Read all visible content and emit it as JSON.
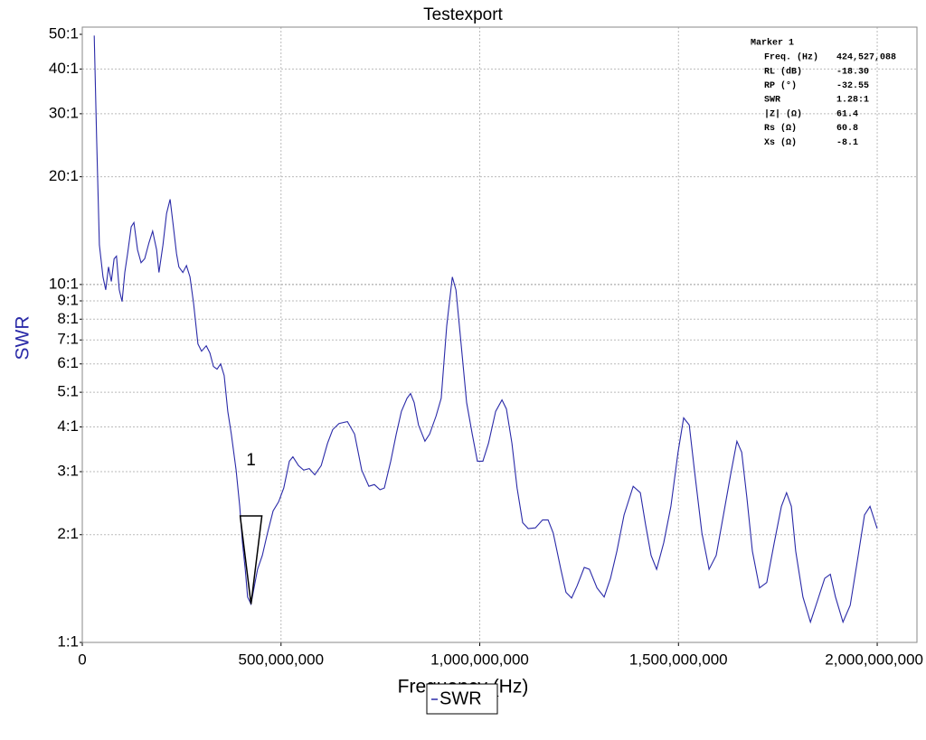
{
  "chart_data": {
    "type": "line",
    "title": "Testexport",
    "x_label": "Frequency (Hz)",
    "y_label": "SWR",
    "ylog": true,
    "grid": true,
    "legend": "bottom",
    "xlim": [
      0,
      2100000000
    ],
    "ylim": [
      1,
      50
    ],
    "xticks": [
      0,
      {
        "value": 500000000,
        "label": "500,000,000"
      },
      {
        "value": 1000000000,
        "label": "1,000,000,000"
      },
      {
        "value": 1500000000,
        "label": "1,500,000,000"
      },
      {
        "value": 2000000000,
        "label": "2,000,000,000"
      }
    ],
    "yticks": [
      {
        "value": 1,
        "label": "1:1"
      },
      {
        "value": 2,
        "label": "2:1"
      },
      {
        "value": 3,
        "label": "3:1"
      },
      {
        "value": 4,
        "label": "4:1"
      },
      {
        "value": 5,
        "label": "5:1"
      },
      {
        "value": 6,
        "label": "6:1"
      },
      {
        "value": 7,
        "label": "7:1"
      },
      {
        "value": 8,
        "label": "8:1"
      },
      {
        "value": 9,
        "label": "9:1"
      },
      {
        "value": 10,
        "label": "10:1"
      },
      {
        "value": 20,
        "label": "20:1"
      },
      {
        "value": 30,
        "label": "30:1"
      },
      {
        "value": 40,
        "label": "40:1"
      },
      {
        "value": 50,
        "label": "50:1"
      }
    ],
    "x": [
      30000000,
      36000000,
      43000000,
      52000000,
      59000000,
      66000000,
      73000000,
      80000000,
      86000000,
      93000000,
      100000000,
      107000000,
      114000000,
      123000000,
      130000000,
      139000000,
      148000000,
      157000000,
      168000000,
      177000000,
      187000000,
      193000000,
      203000000,
      212000000,
      221000000,
      228000000,
      237000000,
      243000000,
      253000000,
      262000000,
      271000000,
      280000000,
      291000000,
      300000000,
      312000000,
      321000000,
      330000000,
      339000000,
      348000000,
      357000000,
      366000000,
      375000000,
      387000000,
      396000000,
      403000000,
      410000000,
      416000000,
      424527088,
      432000000,
      441000000,
      453000000,
      466000000,
      480000000,
      494000000,
      507000000,
      521000000,
      530000000,
      544000000,
      557000000,
      571000000,
      585000000,
      601000000,
      617000000,
      630000000,
      646000000,
      667000000,
      685000000,
      703000000,
      721000000,
      735000000,
      749000000,
      760000000,
      776000000,
      790000000,
      803000000,
      817000000,
      826000000,
      835000000,
      846000000,
      862000000,
      874000000,
      890000000,
      903000000,
      917000000,
      931000000,
      940000000,
      953000000,
      967000000,
      981000000,
      994000000,
      1008000000,
      1022000000,
      1040000000,
      1056000000,
      1067000000,
      1081000000,
      1094000000,
      1108000000,
      1122000000,
      1140000000,
      1158000000,
      1172000000,
      1185000000,
      1204000000,
      1217000000,
      1231000000,
      1245000000,
      1263000000,
      1276000000,
      1295000000,
      1313000000,
      1329000000,
      1345000000,
      1363000000,
      1386000000,
      1404000000,
      1417000000,
      1431000000,
      1445000000,
      1463000000,
      1481000000,
      1499000000,
      1513000000,
      1527000000,
      1540000000,
      1559000000,
      1577000000,
      1595000000,
      1613000000,
      1631000000,
      1647000000,
      1659000000,
      1672000000,
      1686000000,
      1704000000,
      1722000000,
      1741000000,
      1759000000,
      1772000000,
      1784000000,
      1795000000,
      1813000000,
      1832000000,
      1850000000,
      1868000000,
      1882000000,
      1895000000,
      1914000000,
      1932000000,
      1950000000,
      1968000000,
      1982000000,
      2000000000
    ],
    "series": [
      {
        "name": "SWR",
        "color": "#2a2aa8",
        "values": [
          49.6,
          25.9,
          12.9,
          10.5,
          9.66,
          11.2,
          10.2,
          11.8,
          12.0,
          9.66,
          8.96,
          10.8,
          12.2,
          14.5,
          14.9,
          12.5,
          11.5,
          11.8,
          13.1,
          14.1,
          12.5,
          10.8,
          12.9,
          15.8,
          17.3,
          14.9,
          12.2,
          11.2,
          10.8,
          11.3,
          10.5,
          8.85,
          6.82,
          6.51,
          6.74,
          6.44,
          5.9,
          5.8,
          6.0,
          5.57,
          4.42,
          3.82,
          3.03,
          2.4,
          1.9,
          1.6,
          1.34,
          1.28,
          1.42,
          1.6,
          1.75,
          2.02,
          2.33,
          2.47,
          2.7,
          3.21,
          3.3,
          3.12,
          3.03,
          3.06,
          2.94,
          3.12,
          3.6,
          3.93,
          4.09,
          4.14,
          3.82,
          3.03,
          2.73,
          2.76,
          2.67,
          2.7,
          3.21,
          3.82,
          4.42,
          4.81,
          4.96,
          4.68,
          4.05,
          3.65,
          3.82,
          4.29,
          4.81,
          7.66,
          10.5,
          9.66,
          6.82,
          4.68,
          3.82,
          3.21,
          3.21,
          3.6,
          4.42,
          4.76,
          4.49,
          3.6,
          2.7,
          2.16,
          2.08,
          2.09,
          2.2,
          2.2,
          2.02,
          1.6,
          1.38,
          1.33,
          1.44,
          1.62,
          1.6,
          1.42,
          1.34,
          1.51,
          1.8,
          2.27,
          2.73,
          2.62,
          2.14,
          1.75,
          1.6,
          1.9,
          2.4,
          3.4,
          4.24,
          4.05,
          3.03,
          2.02,
          1.6,
          1.75,
          2.27,
          2.94,
          3.65,
          3.4,
          2.54,
          1.8,
          1.42,
          1.47,
          1.9,
          2.4,
          2.62,
          2.4,
          1.8,
          1.34,
          1.14,
          1.31,
          1.51,
          1.55,
          1.34,
          1.14,
          1.27,
          1.69,
          2.27,
          2.4,
          2.08
        ]
      }
    ],
    "marker": {
      "label": "1",
      "freq": 424527088,
      "swr": 1.28
    },
    "readout": {
      "title": "Marker 1",
      "rows": [
        [
          "Freq. (Hz)",
          "424,527,088"
        ],
        [
          "RL (dB)",
          "-18.30"
        ],
        [
          "RP (°)",
          "-32.55"
        ],
        [
          "SWR",
          "1.28:1"
        ],
        [
          "|Z| (Ω)",
          "61.4"
        ],
        [
          "Rs (Ω)",
          "60.8"
        ],
        [
          "Xs (Ω)",
          "-8.1"
        ]
      ]
    }
  }
}
